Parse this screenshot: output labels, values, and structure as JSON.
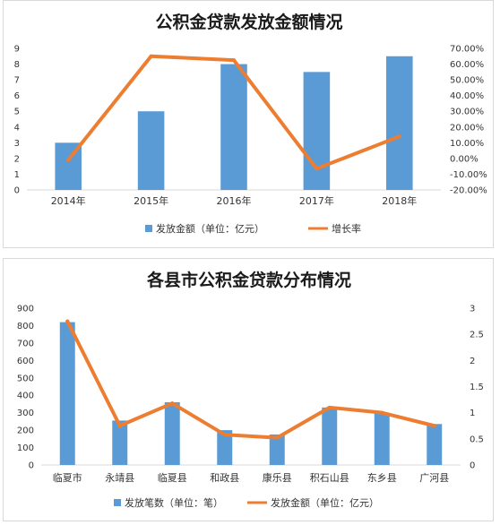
{
  "chart_data": [
    {
      "type": "bar",
      "title": "公积金贷款发放金额情况",
      "categories": [
        "2014年",
        "2015年",
        "2016年",
        "2017年",
        "2018年"
      ],
      "series": [
        {
          "name": "发放金额（单位：亿元）",
          "type": "bar",
          "axis": "left",
          "values": [
            3.0,
            5.0,
            8.0,
            7.5,
            8.5
          ],
          "color": "#5b9bd5"
        },
        {
          "name": "增长率",
          "type": "line",
          "axis": "right",
          "values": [
            -1.0,
            65.0,
            62.5,
            -6.5,
            14.0
          ],
          "color": "#ed7d31"
        }
      ],
      "y_left": {
        "min": 0,
        "max": 9,
        "step": 1,
        "ticks": [
          "0",
          "1",
          "2",
          "3",
          "4",
          "5",
          "6",
          "7",
          "8",
          "9"
        ]
      },
      "y_right": {
        "min": -20,
        "max": 70,
        "step": 10,
        "ticks": [
          "-20.00%",
          "-10.00%",
          "0.00%",
          "10.00%",
          "20.00%",
          "30.00%",
          "40.00%",
          "50.00%",
          "60.00%",
          "70.00%"
        ]
      },
      "legend_position": "bottom",
      "grid": false
    },
    {
      "type": "bar",
      "title": "各县市公积金贷款分布情况",
      "categories": [
        "临夏市",
        "永靖县",
        "临夏县",
        "和政县",
        "康乐县",
        "积石山县",
        "东乡县",
        "广河县"
      ],
      "series": [
        {
          "name": "发放笔数（单位：笔）",
          "type": "bar",
          "axis": "left",
          "values": [
            820,
            255,
            360,
            200,
            175,
            330,
            295,
            235
          ],
          "color": "#5b9bd5"
        },
        {
          "name": "发放金额（单位：亿元）",
          "type": "line",
          "axis": "right",
          "values": [
            2.75,
            0.75,
            1.18,
            0.58,
            0.52,
            1.1,
            1.0,
            0.75
          ],
          "color": "#ed7d31"
        }
      ],
      "y_left": {
        "min": 0,
        "max": 900,
        "step": 100,
        "ticks": [
          "0",
          "100",
          "200",
          "300",
          "400",
          "500",
          "600",
          "700",
          "800",
          "900"
        ]
      },
      "y_right": {
        "min": 0,
        "max": 3,
        "step": 0.5,
        "ticks": [
          "0",
          "0.5",
          "1",
          "1.5",
          "2",
          "2.5",
          "3"
        ]
      },
      "legend_position": "bottom",
      "grid": false
    }
  ]
}
